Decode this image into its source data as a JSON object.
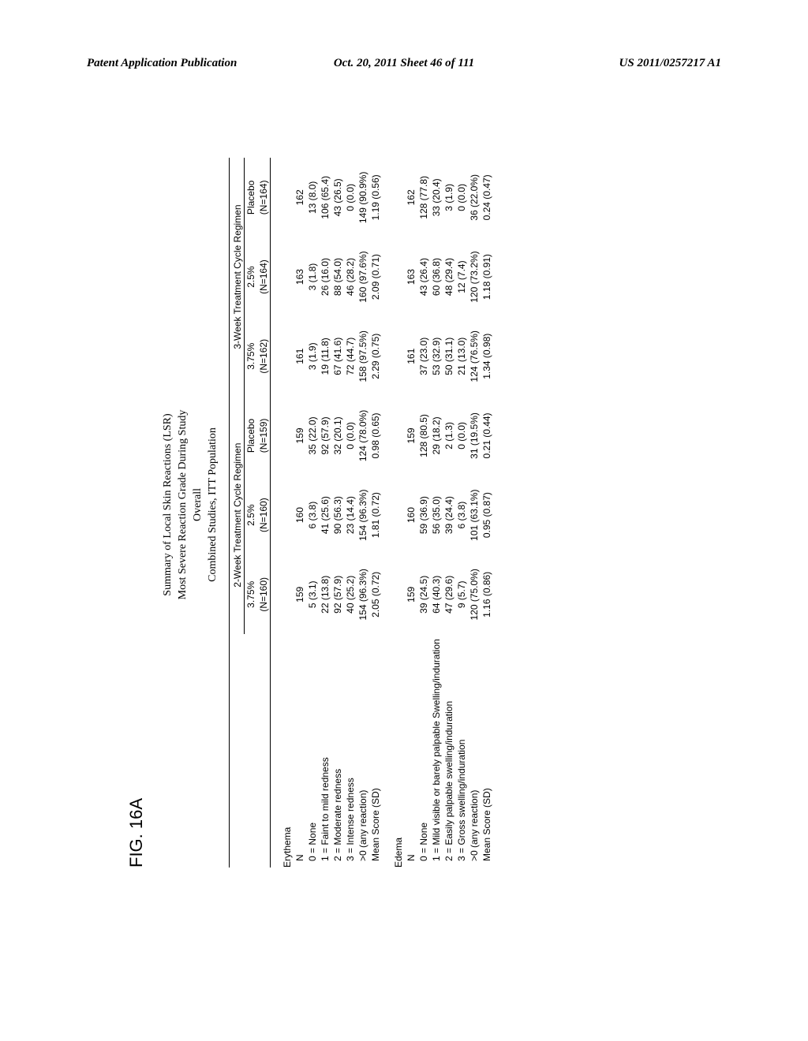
{
  "header": {
    "left": "Patent Application Publication",
    "center": "Oct. 20, 2011  Sheet 46 of 111",
    "right": "US 2011/0257217 A1"
  },
  "figure_label": "FIG. 16A",
  "title_lines": [
    "Summary of Local Skin Reactions (LSR)",
    "Most Severe Reaction Grade During Study",
    "Overall",
    "Combined Studies, ITT Population"
  ],
  "group_headers": [
    "2-Week Treatment Cycle Regimen",
    "3-Week Treatment Cycle Regimen"
  ],
  "col_headers": [
    {
      "dose": "3.75%",
      "n": "(N=160)"
    },
    {
      "dose": "2.5%",
      "n": "(N=160)"
    },
    {
      "dose": "Placebo",
      "n": "(N=159)"
    },
    {
      "dose": "3.75%",
      "n": "(N=162)"
    },
    {
      "dose": "2.5%",
      "n": "(N=164)"
    },
    {
      "dose": "Placebo",
      "n": "(N=164)"
    }
  ],
  "sections": [
    {
      "name": "Erythema",
      "rows": [
        {
          "label": "N",
          "vals": [
            "159",
            "160",
            "159",
            "161",
            "163",
            "162"
          ]
        },
        {
          "label": "0 = None",
          "vals": [
            "5 (3.1)",
            "6 (3.8)",
            "35 (22.0)",
            "3 (1.9)",
            "3 (1.8)",
            "13 (8.0)"
          ]
        },
        {
          "label": "1 = Faint to mild redness",
          "vals": [
            "22 (13.8)",
            "41 (25.6)",
            "92 (57.9)",
            "19 (11.8)",
            "26 (16.0)",
            "106 (65.4)"
          ]
        },
        {
          "label": "2 = Moderate redness",
          "vals": [
            "92 (57.9)",
            "90 (56.3)",
            "32 (20.1)",
            "67 (41.6)",
            "88 (54.0)",
            "43 (26.5)"
          ]
        },
        {
          "label": "3 = Intense redness",
          "vals": [
            "40 (25.2)",
            "23 (14.4)",
            "0 (0.0)",
            "72 (44.7)",
            "46 (28.2)",
            "0 (0.0)"
          ]
        },
        {
          "label": ">0 (any reaction)",
          "vals": [
            "154 (96.3%)",
            "154 (96.3%)",
            "124 (78.0%)",
            "158 (97.5%)",
            "160 (97.6%)",
            "149 (90.9%)"
          ]
        },
        {
          "label": "Mean Score (SD)",
          "vals": [
            "2.05 (0.72)",
            "1.81 (0.72)",
            "0.98 (0.65)",
            "2.29 (0.75)",
            "2.09 (0.71)",
            "1.19 (0.56)"
          ]
        }
      ]
    },
    {
      "name": "Edema",
      "rows": [
        {
          "label": "N",
          "vals": [
            "159",
            "160",
            "159",
            "161",
            "163",
            "162"
          ]
        },
        {
          "label": "0 = None",
          "vals": [
            "39 (24.5)",
            "59 (36.9)",
            "128 (80.5)",
            "37 (23.0)",
            "43 (26.4)",
            "128 (77.8)"
          ]
        },
        {
          "label": "1 = Mild visible or barely palpable Swelling/induration",
          "vals": [
            "64 (40.3)",
            "56 (35.0)",
            "29 (18.2)",
            "53 (32.9)",
            "60 (36.8)",
            "33 (20.4)"
          ]
        },
        {
          "label": "2 = Easily palpable swelling/induration",
          "vals": [
            "47 (29.6)",
            "39 (24.4)",
            "2 (1.3)",
            "50 (31.1)",
            "48 (29.4)",
            "3 (1.9)"
          ]
        },
        {
          "label": "3 = Gross swelling/induration",
          "vals": [
            "9 (5.7)",
            "6 (3.8)",
            "0 (0.0)",
            "21 (13.0)",
            "12 (7.4)",
            "0 (0.0)"
          ]
        },
        {
          "label": ">0 (any reaction)",
          "vals": [
            "120 (75.0%)",
            "101 (63.1%)",
            "31 (19.5%)",
            "124 (76.5%)",
            "120 (73.2%)",
            "36 (22.0%)"
          ]
        },
        {
          "label": "Mean Score (SD)",
          "vals": [
            "1.16 (0.86)",
            "0.95 (0.87)",
            "0.21 (0.44)",
            "1.34 (0.98)",
            "1.18 (0.91)",
            "0.24 (0.47)"
          ]
        }
      ]
    }
  ]
}
